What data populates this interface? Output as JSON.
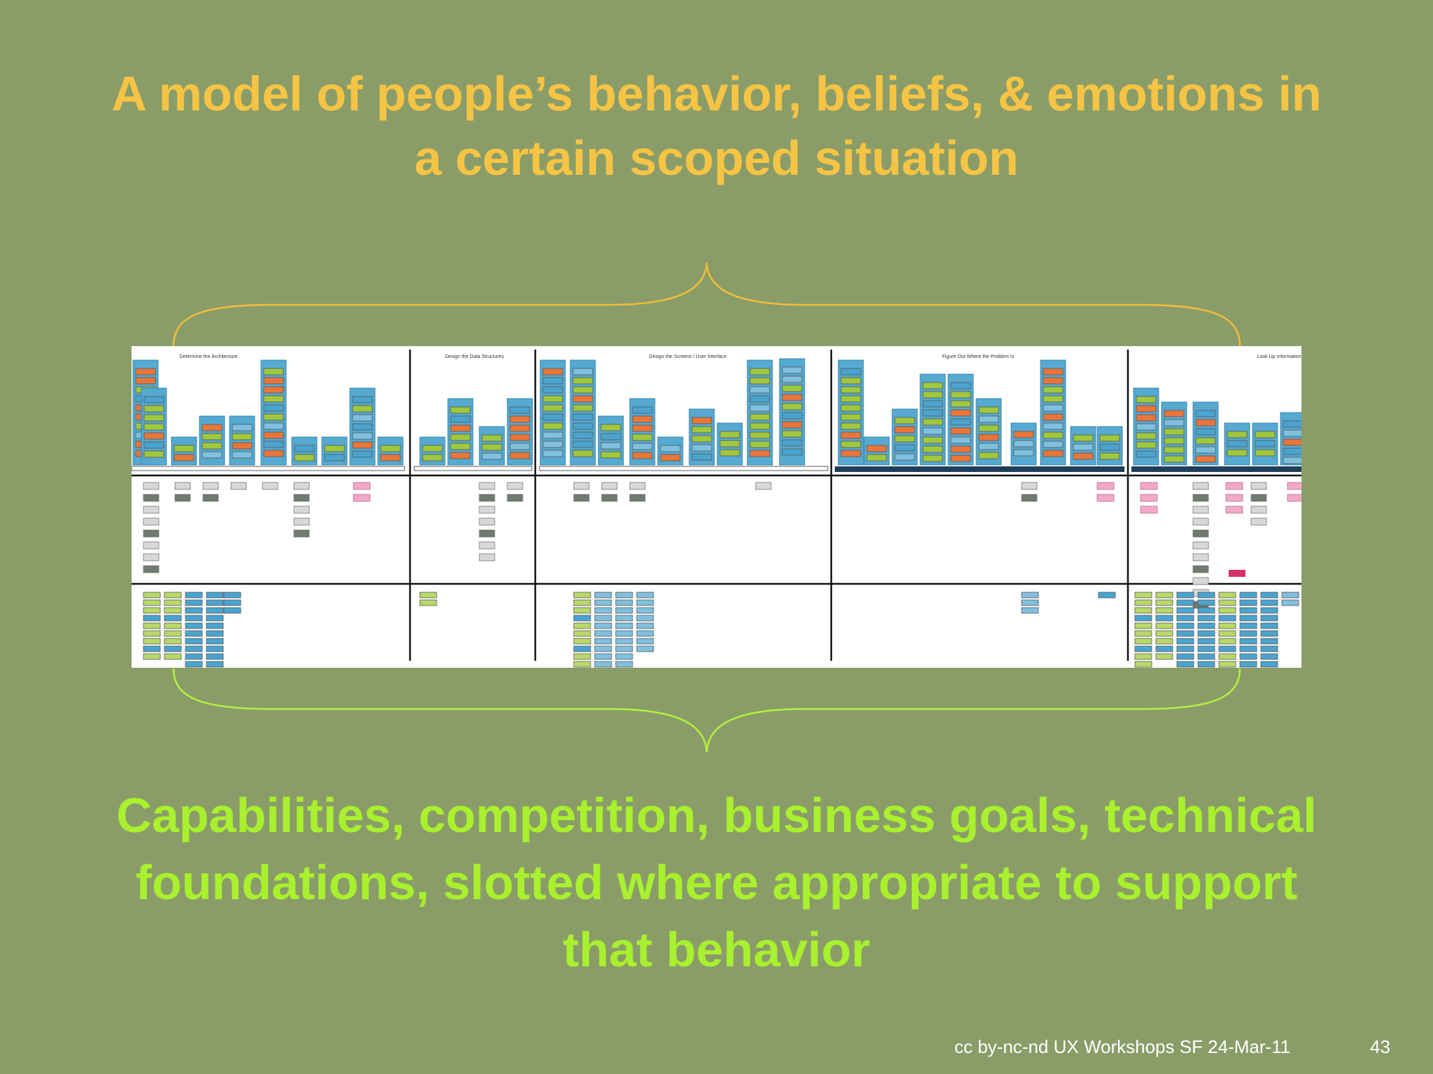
{
  "slide": {
    "title": "A model of people’s behavior, beliefs, & emotions in a certain scoped situation",
    "title_lines": [
      "A model of people’s behavior, beliefs, & emotions in",
      "a certain scoped situation"
    ],
    "subtitle_lines": [
      "Capabilities, competition, business goals, technical",
      "foundations, slotted where appropriate to support",
      "that behavior"
    ],
    "footer": "cc by-nc-nd UX Workshops SF 24-Mar-11",
    "page_number": "43"
  },
  "diagram": {
    "sections": [
      {
        "title": "Determine the Architecture"
      },
      {
        "title": "Design the Data Structures"
      },
      {
        "title": "Design the Screens / User Interface"
      },
      {
        "title": "Figure Out Where the Problem Is"
      },
      {
        "title": "Look Up Information"
      }
    ]
  },
  "colors": {
    "background": "#8a9d68",
    "title": "#f6c445",
    "subtitle": "#a9f02e",
    "brace_top": "#f2bd3a",
    "brace_bottom": "#b5f040"
  }
}
